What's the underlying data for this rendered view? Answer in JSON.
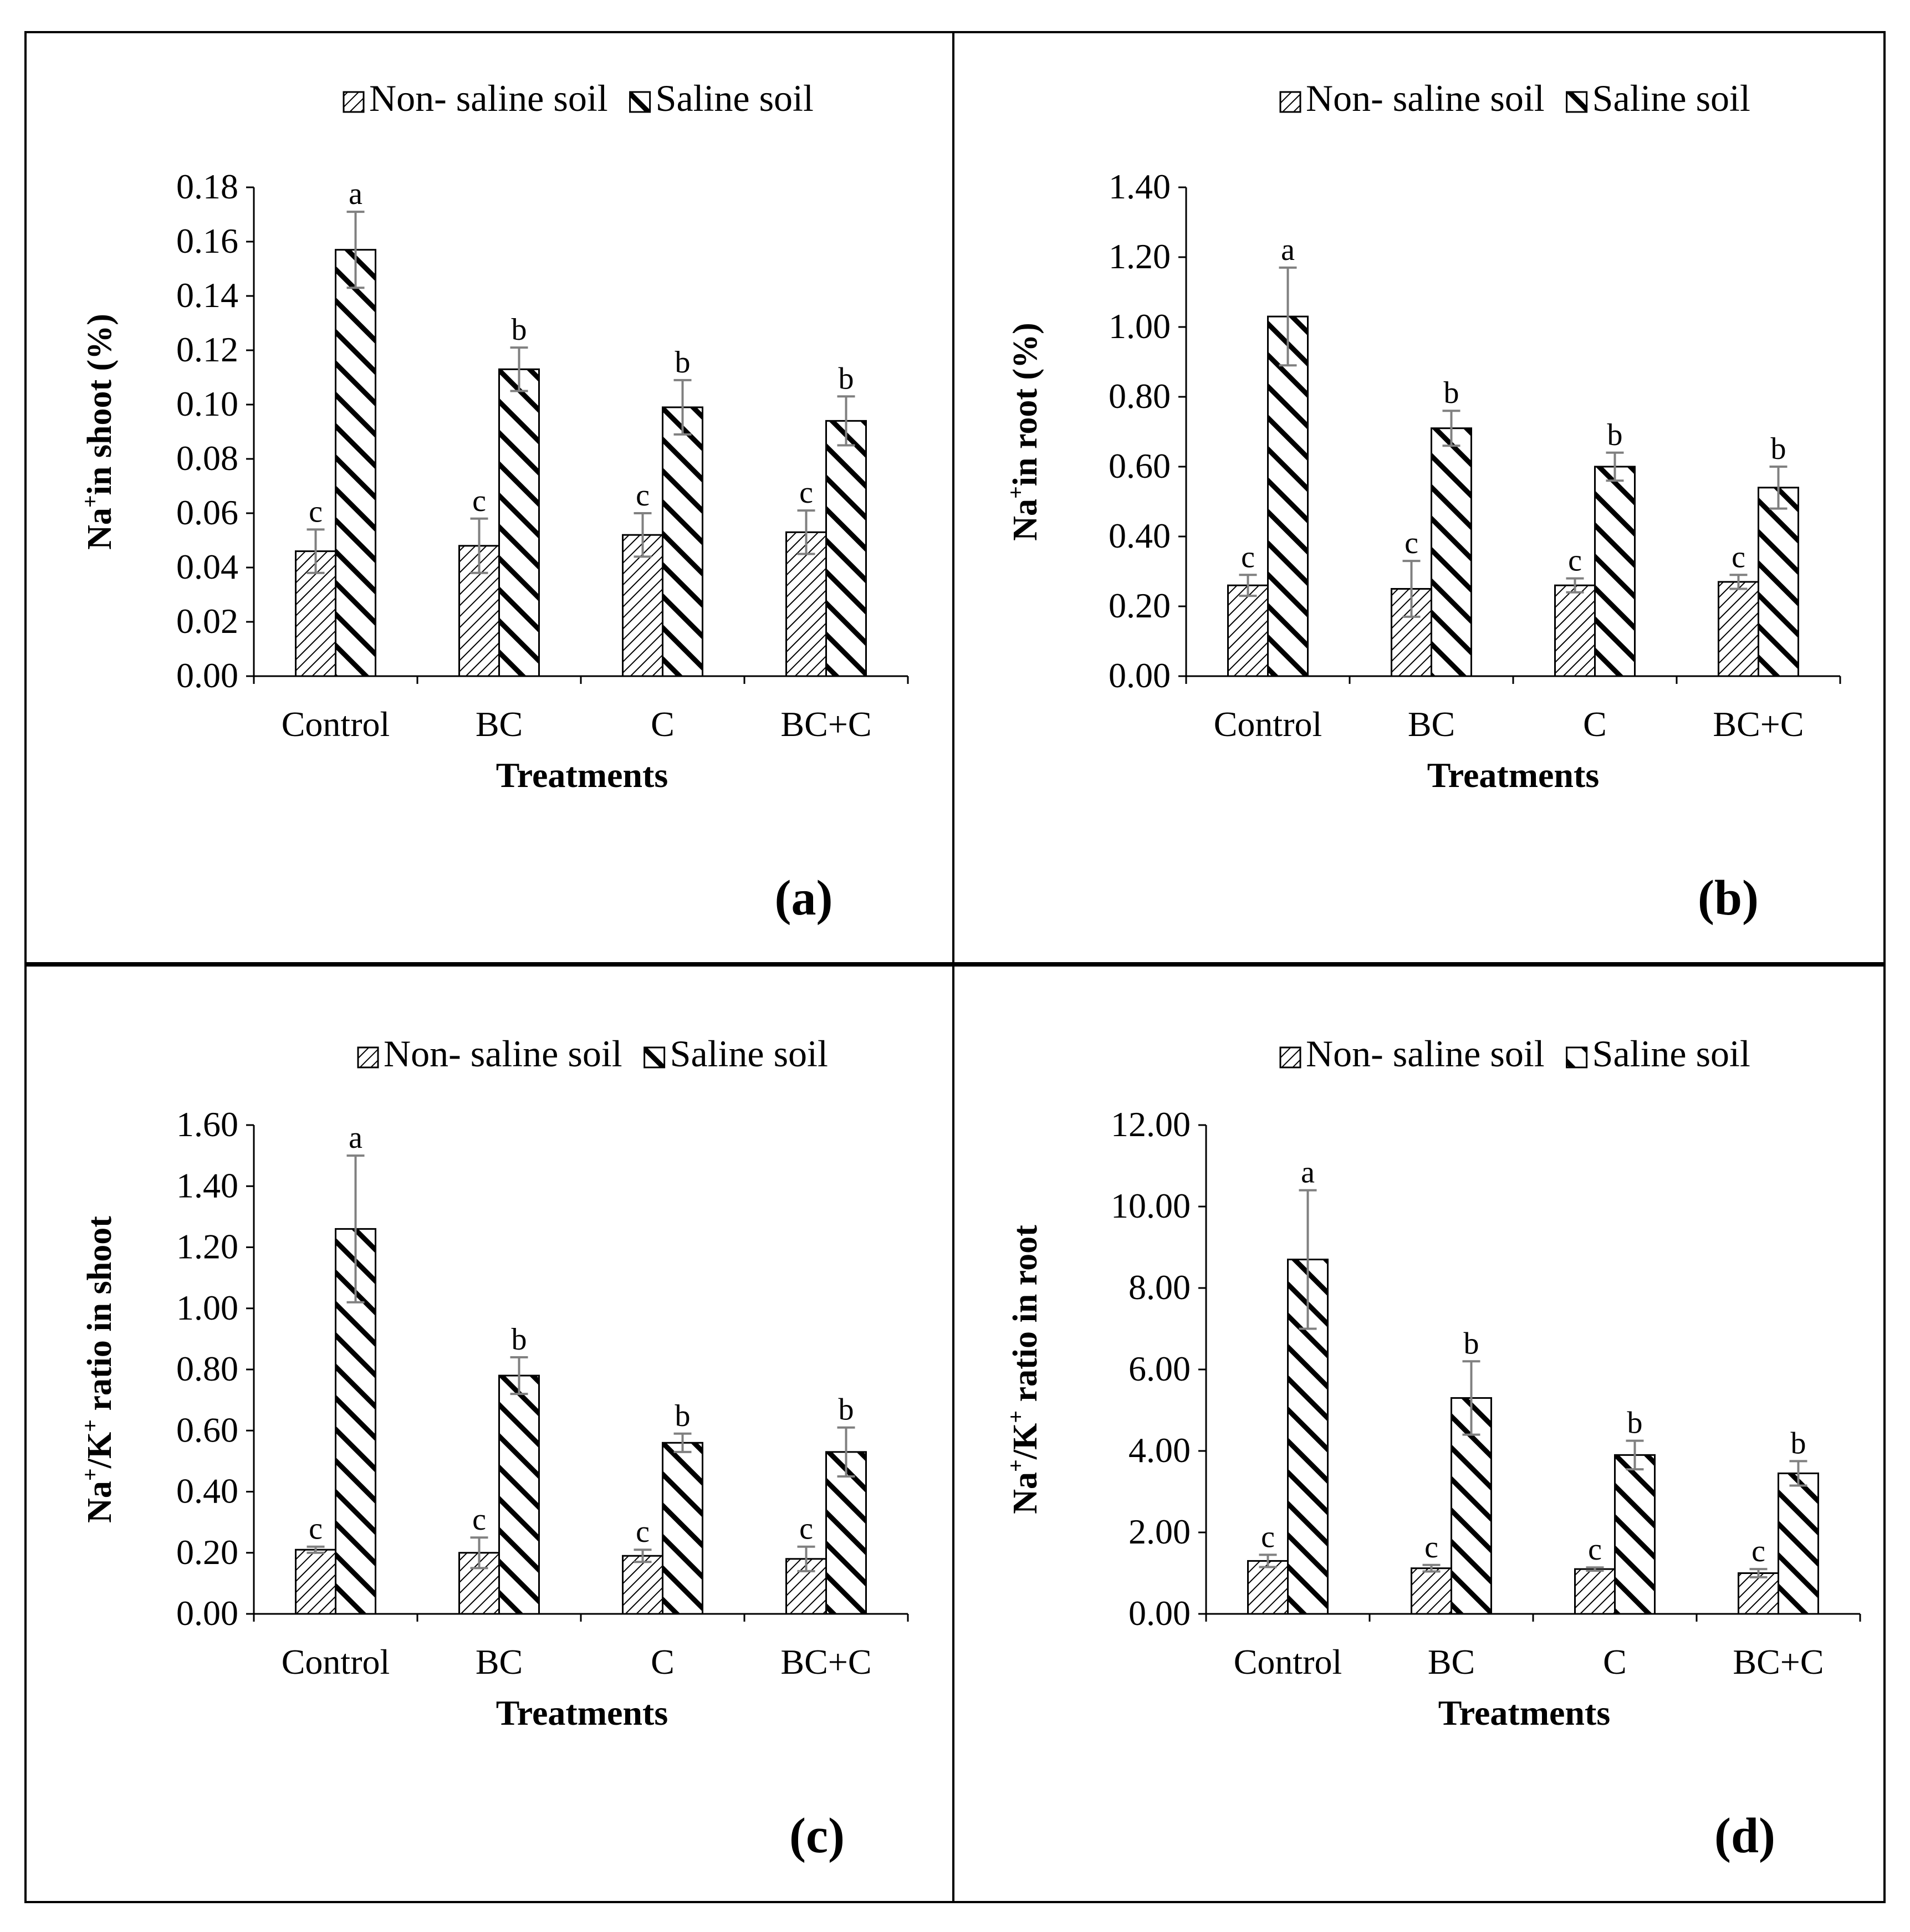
{
  "legend": {
    "non_saline": "Non- saline soil",
    "saline": "Saline soil"
  },
  "colors": {
    "border": "#000000",
    "errorbar": "#808080",
    "bar_fill": "#ffffff"
  },
  "chart_data": [
    {
      "type": "bar",
      "panel_label": "(a)",
      "title": "",
      "xlabel": "Treatments",
      "ylabel_parts": [
        "Na",
        "+",
        "in shoot (%)"
      ],
      "categories": [
        "Control",
        "BC",
        "C",
        "BC+C"
      ],
      "ylim": [
        0,
        0.18
      ],
      "ystep": 0.02,
      "tick_decimals": 2,
      "yticks": [
        "0.00",
        "0.02",
        "0.04",
        "0.06",
        "0.08",
        "0.10",
        "0.12",
        "0.14",
        "0.16",
        "0.18"
      ],
      "legend_position": "top-right",
      "series": [
        {
          "name": "Non- saline soil",
          "values": [
            0.046,
            0.048,
            0.052,
            0.053
          ],
          "errors": [
            0.008,
            0.01,
            0.008,
            0.008
          ],
          "letters": [
            "c",
            "c",
            "c",
            "c"
          ]
        },
        {
          "name": "Saline soil",
          "values": [
            0.157,
            0.113,
            0.099,
            0.094
          ],
          "errors": [
            0.014,
            0.008,
            0.01,
            0.009
          ],
          "letters": [
            "a",
            "b",
            "b",
            "b"
          ]
        }
      ]
    },
    {
      "type": "bar",
      "panel_label": "(b)",
      "title": "",
      "xlabel": "Treatments",
      "ylabel_parts": [
        "Na",
        "+",
        "in root (%)"
      ],
      "categories": [
        "Control",
        "BC",
        "C",
        "BC+C"
      ],
      "ylim": [
        0,
        1.4
      ],
      "ystep": 0.2,
      "tick_decimals": 2,
      "yticks": [
        "0.00",
        "0.20",
        "0.40",
        "0.60",
        "0.80",
        "1.00",
        "1.20",
        "1.40"
      ],
      "legend_position": "top-right",
      "series": [
        {
          "name": "Non- saline soil",
          "values": [
            0.26,
            0.25,
            0.26,
            0.27
          ],
          "errors": [
            0.03,
            0.08,
            0.02,
            0.02
          ],
          "letters": [
            "c",
            "c",
            "c",
            "c"
          ]
        },
        {
          "name": "Saline soil",
          "values": [
            1.03,
            0.71,
            0.6,
            0.54
          ],
          "errors": [
            0.14,
            0.05,
            0.04,
            0.06
          ],
          "letters": [
            "a",
            "b",
            "b",
            "b"
          ]
        }
      ]
    },
    {
      "type": "bar",
      "panel_label": "(c)",
      "title": "",
      "xlabel": "Treatments",
      "ylabel_parts": [
        "Na",
        "+",
        "/K",
        "+",
        " ratio in shoot"
      ],
      "categories": [
        "Control",
        "BC",
        "C",
        "BC+C"
      ],
      "ylim": [
        0,
        1.6
      ],
      "ystep": 0.2,
      "tick_decimals": 2,
      "yticks": [
        "0.00",
        "0.20",
        "0.40",
        "0.60",
        "0.80",
        "1.00",
        "1.20",
        "1.40",
        "1.60"
      ],
      "legend_position": "top-right",
      "series": [
        {
          "name": "Non- saline soil",
          "values": [
            0.21,
            0.2,
            0.19,
            0.18
          ],
          "errors": [
            0.01,
            0.05,
            0.02,
            0.04
          ],
          "letters": [
            "c",
            "c",
            "c",
            "c"
          ]
        },
        {
          "name": "Saline soil",
          "values": [
            1.26,
            0.78,
            0.56,
            0.53
          ],
          "errors": [
            0.24,
            0.06,
            0.03,
            0.08
          ],
          "letters": [
            "a",
            "b",
            "b",
            "b"
          ]
        }
      ]
    },
    {
      "type": "bar",
      "panel_label": "(d)",
      "title": "",
      "xlabel": "Treatments",
      "ylabel_parts": [
        "Na",
        "+",
        "/K",
        "+",
        " ratio in root"
      ],
      "categories": [
        "Control",
        "BC",
        "C",
        "BC+C"
      ],
      "ylim": [
        0,
        12
      ],
      "ystep": 2,
      "tick_decimals": 2,
      "yticks": [
        "0.00",
        "2.00",
        "4.00",
        "6.00",
        "8.00",
        "10.00",
        "12.00"
      ],
      "legend_position": "top-right",
      "series": [
        {
          "name": "Non- saline soil",
          "values": [
            1.3,
            1.12,
            1.1,
            1.0
          ],
          "errors": [
            0.15,
            0.08,
            0.04,
            0.1
          ],
          "letters": [
            "c",
            "c",
            "c",
            "c"
          ]
        },
        {
          "name": "Saline soil",
          "values": [
            8.7,
            5.3,
            3.9,
            3.45
          ],
          "errors": [
            1.7,
            0.9,
            0.35,
            0.3
          ],
          "letters": [
            "a",
            "b",
            "b",
            "b"
          ]
        }
      ]
    }
  ]
}
